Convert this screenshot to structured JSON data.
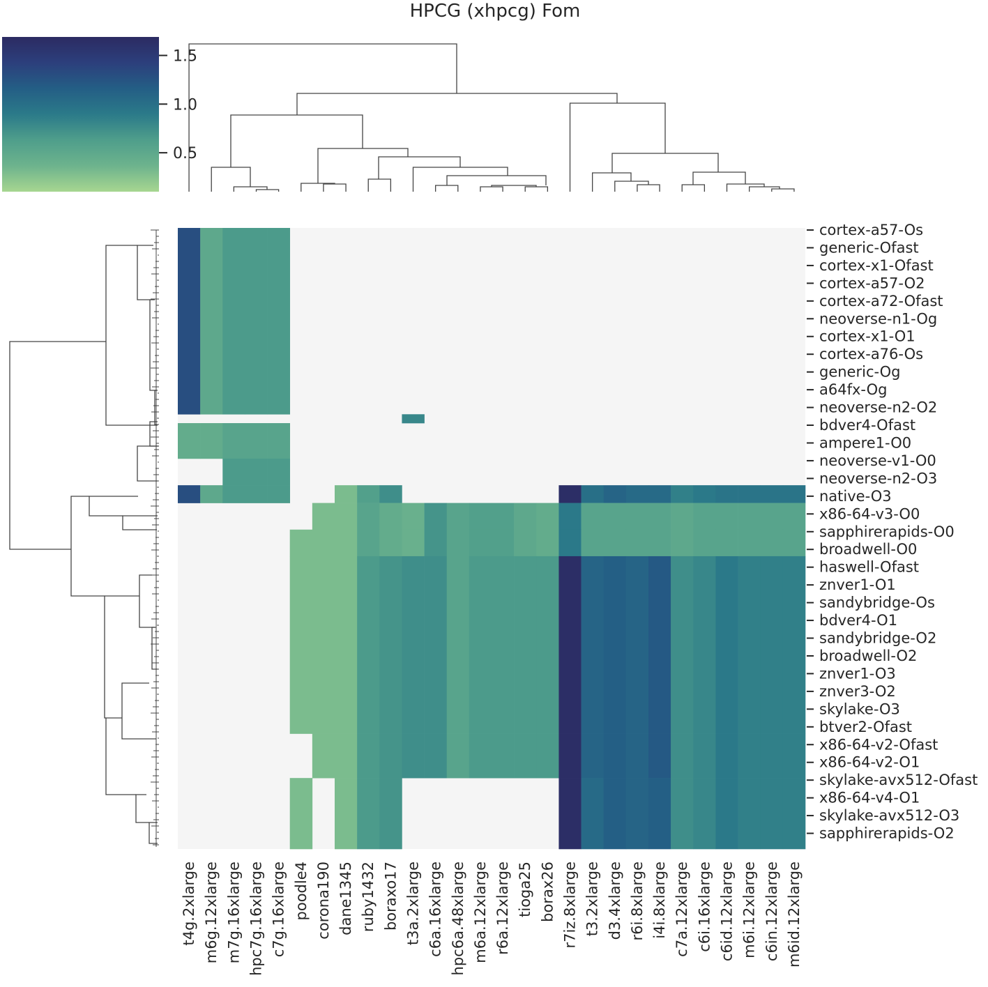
{
  "chart_data": {
    "type": "heatmap",
    "subtype": "clustermap",
    "title": "HPCG (xhpcg) Fom",
    "colormap": "crest",
    "colorbar": {
      "range": [
        0.1,
        1.69
      ],
      "ticks": [
        {
          "value": 1.5,
          "label": "1.5"
        },
        {
          "value": 1.0,
          "label": "1.0"
        },
        {
          "value": 0.5,
          "label": "0.5"
        }
      ],
      "stops": [
        "#a7d690",
        "#6db38d",
        "#4f9e8b",
        "#2b7a89",
        "#245e85",
        "#2c3f7c",
        "#2c2b62"
      ]
    },
    "missing_color": "#f5f5f5",
    "columns": [
      "t4g.2xlarge",
      "m6g.12xlarge",
      "m7g.16xlarge",
      "hpc7g.16xlarge",
      "c7g.16xlarge",
      "poodle4",
      "corona190",
      "dane1345",
      "ruby1432",
      "boraxo17",
      "t3a.2xlarge",
      "c6a.16xlarge",
      "hpc6a.48xlarge",
      "m6a.12xlarge",
      "r6a.12xlarge",
      "tioga25",
      "borax26",
      "r7iz.8xlarge",
      "t3.2xlarge",
      "d3.4xlarge",
      "r6i.8xlarge",
      "i4i.8xlarge",
      "c7a.12xlarge",
      "c6i.16xlarge",
      "c6id.12xlarge",
      "m6i.12xlarge",
      "c6in.12xlarge",
      "m6id.12xlarge"
    ],
    "row_labels": [
      "cortex-a57-Os",
      "generic-Ofast",
      "cortex-x1-Ofast",
      "cortex-a57-O2",
      "cortex-a72-Ofast",
      "neoverse-n1-Og",
      "cortex-x1-O1",
      "cortex-a76-Os",
      "generic-Og",
      "a64fx-Og",
      "neoverse-n2-O2",
      "bdver4-Ofast",
      "ampere1-O0",
      "neoverse-v1-O0",
      "neoverse-n2-O3",
      "native-O3",
      "x86-64-v3-O0",
      "sapphirerapids-O0",
      "broadwell-O0",
      "haswell-Ofast",
      "znver1-O1",
      "sandybridge-Os",
      "bdver4-O1",
      "sandybridge-O2",
      "broadwell-O2",
      "znver1-O3",
      "znver3-O2",
      "skylake-O3",
      "btver2-Ofast",
      "x86-64-v2-Ofast",
      "x86-64-v2-O1",
      "skylake-avx512-Ofast",
      "x86-64-v4-O1",
      "skylake-avx512-O3",
      "sapphirerapids-O2"
    ],
    "row_blocks": [
      {
        "n": 21,
        "values": [
          1.3,
          0.5,
          0.65,
          0.65,
          0.65,
          null,
          null,
          null,
          null,
          null,
          null,
          null,
          null,
          null,
          null,
          null,
          null,
          null,
          null,
          null,
          null,
          null,
          null,
          null,
          null,
          null,
          null,
          null
        ]
      },
      {
        "n": 1,
        "values": [
          null,
          null,
          null,
          null,
          null,
          null,
          null,
          null,
          null,
          null,
          0.8,
          null,
          null,
          null,
          null,
          null,
          null,
          null,
          null,
          null,
          null,
          null,
          null,
          null,
          null,
          null,
          null,
          null
        ]
      },
      {
        "n": 4,
        "values": [
          0.45,
          0.45,
          0.55,
          0.55,
          0.55,
          null,
          null,
          null,
          null,
          null,
          null,
          null,
          null,
          null,
          null,
          null,
          null,
          null,
          null,
          null,
          null,
          null,
          null,
          null,
          null,
          null,
          null,
          null
        ]
      },
      {
        "n": 3,
        "values": [
          null,
          null,
          0.65,
          0.65,
          0.65,
          null,
          null,
          null,
          null,
          null,
          null,
          null,
          null,
          null,
          null,
          null,
          null,
          null,
          null,
          null,
          null,
          null,
          null,
          null,
          null,
          null,
          null,
          null
        ]
      },
      {
        "n": 2,
        "values": [
          1.3,
          0.5,
          0.65,
          0.65,
          0.65,
          null,
          null,
          0.3,
          0.6,
          0.75,
          null,
          null,
          null,
          null,
          null,
          null,
          null,
          1.65,
          1.0,
          1.1,
          1.05,
          1.05,
          0.85,
          0.9,
          0.95,
          0.95,
          0.95,
          0.95
        ]
      },
      {
        "n": 3,
        "values": [
          null,
          null,
          null,
          null,
          null,
          null,
          0.3,
          0.3,
          0.55,
          0.45,
          0.4,
          0.7,
          0.55,
          0.6,
          0.6,
          0.5,
          0.45,
          0.9,
          0.55,
          0.55,
          0.55,
          0.55,
          0.5,
          0.55,
          0.55,
          0.55,
          0.55,
          0.55
        ]
      },
      {
        "n": 3,
        "values": [
          null,
          null,
          null,
          null,
          null,
          0.3,
          0.3,
          0.3,
          0.55,
          0.45,
          0.4,
          0.7,
          0.55,
          0.6,
          0.6,
          0.5,
          0.45,
          0.9,
          0.55,
          0.55,
          0.55,
          0.55,
          0.5,
          0.55,
          0.55,
          0.55,
          0.55,
          0.55
        ]
      },
      {
        "n": 20,
        "values": [
          null,
          null,
          null,
          null,
          null,
          0.3,
          0.3,
          0.3,
          0.65,
          0.7,
          0.75,
          0.75,
          0.55,
          0.65,
          0.65,
          0.65,
          0.65,
          1.65,
          1.1,
          1.15,
          1.1,
          1.2,
          0.75,
          0.8,
          0.9,
          0.85,
          0.85,
          0.85
        ]
      },
      {
        "n": 5,
        "values": [
          null,
          null,
          null,
          null,
          null,
          null,
          0.3,
          0.3,
          0.65,
          0.7,
          0.75,
          0.75,
          0.55,
          0.65,
          0.65,
          0.65,
          0.65,
          1.65,
          1.1,
          1.15,
          1.1,
          1.2,
          0.75,
          0.8,
          0.9,
          0.85,
          0.85,
          0.85
        ]
      },
      {
        "n": 8,
        "values": [
          null,
          null,
          null,
          null,
          null,
          0.3,
          null,
          0.3,
          0.65,
          0.7,
          null,
          null,
          null,
          null,
          null,
          null,
          null,
          1.65,
          1.05,
          1.15,
          1.1,
          1.15,
          0.75,
          0.8,
          0.9,
          0.85,
          0.85,
          0.85
        ]
      }
    ]
  }
}
